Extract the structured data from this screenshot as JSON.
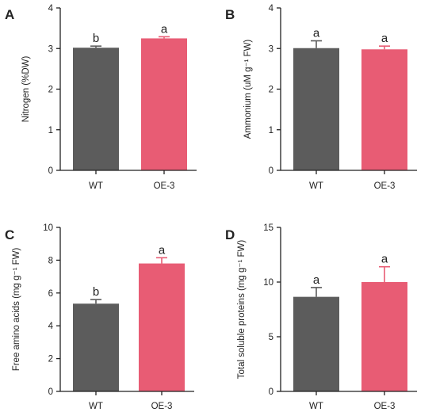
{
  "colors": {
    "wt": "#5c5c5c",
    "oe": "#e85c74",
    "axis": "#222222"
  },
  "panels": [
    {
      "letter": "A",
      "ylabel": "Nitrogen (%DW)"
    },
    {
      "letter": "B",
      "ylabel": "Ammonium (uM g⁻¹ FW)"
    },
    {
      "letter": "C",
      "ylabel": "Free amino acids (mg g⁻¹ FW)"
    },
    {
      "letter": "D",
      "ylabel": "Total soluble proteins (mg g⁻¹ FW)"
    }
  ],
  "chart_data": [
    {
      "type": "bar",
      "title": "",
      "xlabel": "",
      "ylabel": "Nitrogen (%DW)",
      "categories": [
        "WT",
        "OE-3"
      ],
      "values": [
        3.02,
        3.25
      ],
      "errors": [
        0.04,
        0.04
      ],
      "significance": [
        "b",
        "a"
      ],
      "ylim": [
        0,
        4
      ],
      "yticks": [
        0,
        1,
        2,
        3,
        4
      ]
    },
    {
      "type": "bar",
      "title": "",
      "xlabel": "",
      "ylabel": "Ammonium (uM g⁻¹ FW)",
      "categories": [
        "WT",
        "OE-3"
      ],
      "values": [
        3.01,
        2.98
      ],
      "errors": [
        0.18,
        0.08
      ],
      "significance": [
        "a",
        "a"
      ],
      "ylim": [
        0,
        4
      ],
      "yticks": [
        0,
        1,
        2,
        3,
        4
      ]
    },
    {
      "type": "bar",
      "title": "",
      "xlabel": "",
      "ylabel": "Free amino acids (mg g⁻¹ FW)",
      "categories": [
        "WT",
        "OE-3"
      ],
      "values": [
        5.35,
        7.8
      ],
      "errors": [
        0.25,
        0.35
      ],
      "significance": [
        "b",
        "a"
      ],
      "ylim": [
        0,
        10
      ],
      "yticks": [
        0,
        2,
        4,
        6,
        8,
        10
      ]
    },
    {
      "type": "bar",
      "title": "",
      "xlabel": "",
      "ylabel": "Total soluble proteins (mg g⁻¹ FW)",
      "categories": [
        "WT",
        "OE-3"
      ],
      "values": [
        8.65,
        10.0
      ],
      "errors": [
        0.85,
        1.4
      ],
      "significance": [
        "a",
        "a"
      ],
      "ylim": [
        0,
        15
      ],
      "yticks": [
        0,
        5,
        10,
        15
      ]
    }
  ]
}
